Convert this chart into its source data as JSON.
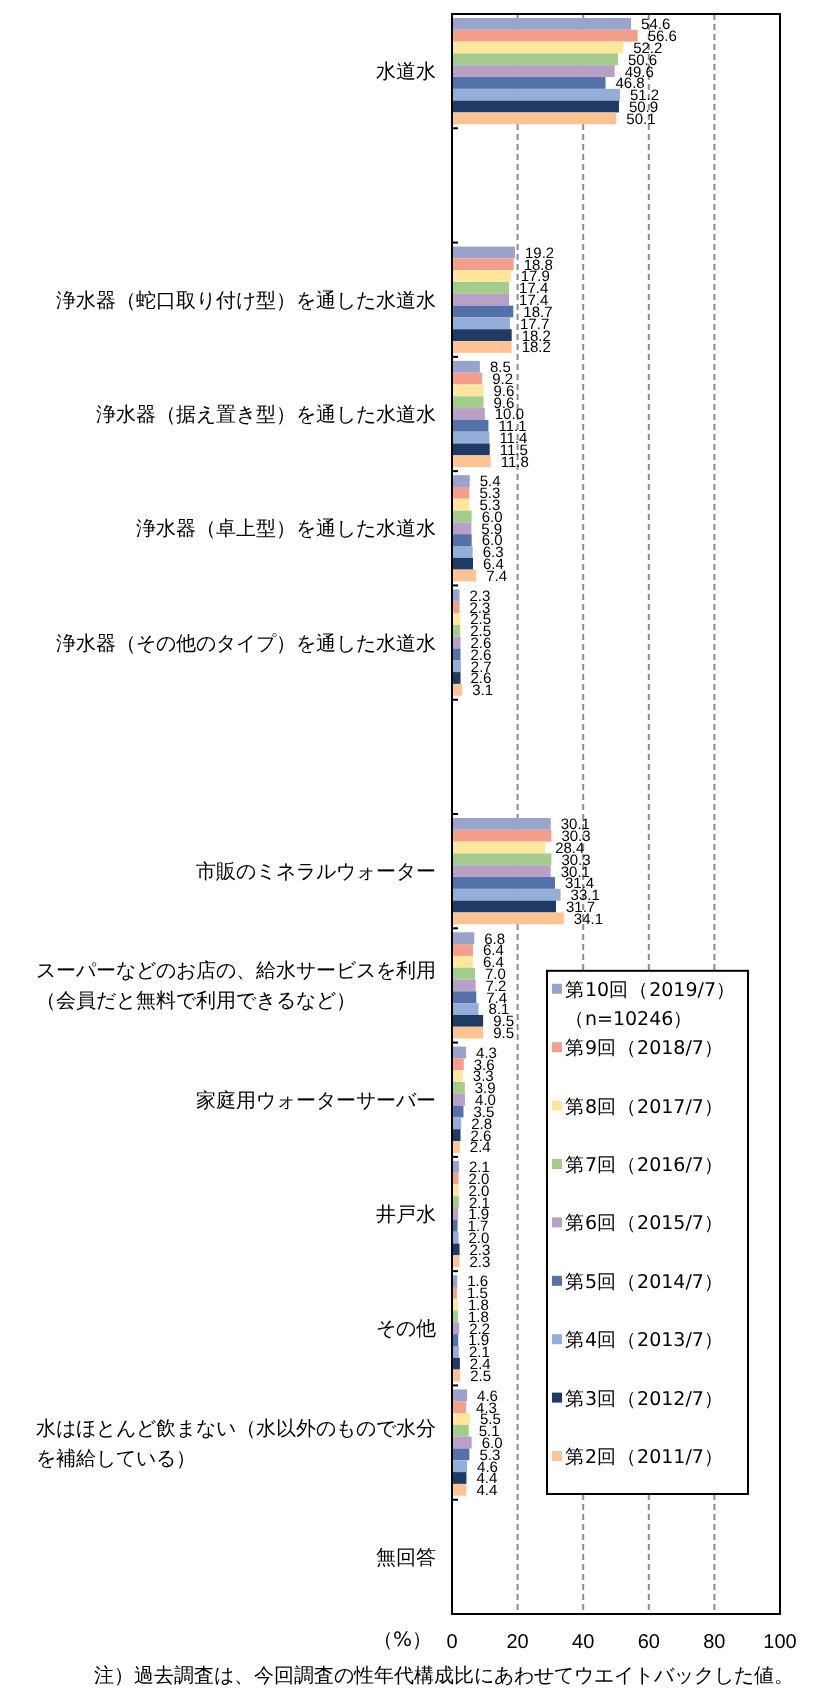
{
  "chart_data": {
    "type": "bar",
    "orientation": "horizontal",
    "categories": [
      "水道水",
      null,
      "浄水器（蛇口取り付け型）を通した水道水",
      "浄水器（据え置き型）を通した水道水",
      "浄水器（卓上型）を通した水道水",
      "浄水器（その他のタイプ）を通した水道水",
      null,
      "市販のミネラルウォーター",
      "スーパーなどのお店の、給水サービスを利用（会員だと無料で利用できるなど）",
      "家庭用ウォーターサーバー",
      "井戸水",
      "その他",
      "水はほとんど飲まない（水以外のもので水分を補給している）",
      "無回答"
    ],
    "series": [
      {
        "name": "第10回（2019/7）（n=10246）",
        "color": "#99a3cc",
        "values": [
          54.6,
          null,
          19.2,
          8.5,
          5.4,
          2.3,
          null,
          30.1,
          6.8,
          4.3,
          2.1,
          1.6,
          4.6,
          null
        ],
        "value_labels": [
          "54.6",
          null,
          "19.2",
          "8.5",
          "5.4",
          "2.3",
          null,
          "30.1",
          "6.8",
          "4.3",
          "2.1",
          "1.6",
          "4.6",
          null
        ]
      },
      {
        "name": "第9回（2018/7）",
        "color": "#f2a08c",
        "values": [
          56.6,
          null,
          18.8,
          9.2,
          5.3,
          2.3,
          null,
          30.3,
          6.4,
          3.6,
          2.0,
          1.5,
          4.3,
          null
        ],
        "value_labels": [
          "56.6",
          null,
          "18.8",
          "9.2",
          "5.3",
          "2.3",
          null,
          "30.3",
          "6.4",
          "3.6",
          "2.0",
          "1.5",
          "4.3",
          null
        ]
      },
      {
        "name": "第8回（2017/7）",
        "color": "#ffe69a",
        "values": [
          52.2,
          null,
          17.9,
          9.6,
          5.3,
          2.5,
          null,
          28.4,
          6.4,
          3.3,
          2.0,
          1.8,
          5.5,
          null
        ],
        "value_labels": [
          "52.2",
          null,
          "17.9",
          "9.6",
          "5.3",
          "2.5",
          null,
          "28.4",
          "6.4",
          "3.3",
          "2.0",
          "1.8",
          "5.5",
          null
        ]
      },
      {
        "name": "第7回（2016/7）",
        "color": "#a2cd8a",
        "values": [
          50.6,
          null,
          17.4,
          9.6,
          6.0,
          2.5,
          null,
          30.3,
          7.0,
          3.9,
          2.1,
          1.8,
          5.1,
          null
        ],
        "value_labels": [
          "50.6",
          null,
          "17.4",
          "9.6",
          "6.0",
          "2.5",
          null,
          "30.3",
          "7.0",
          "3.9",
          "2.1",
          "1.8",
          "5.1",
          null
        ]
      },
      {
        "name": "第6回（2015/7）",
        "color": "#b9a0c6",
        "values": [
          49.6,
          null,
          17.4,
          10.0,
          5.9,
          2.6,
          null,
          30.1,
          7.2,
          4.0,
          1.9,
          2.2,
          6.0,
          null
        ],
        "value_labels": [
          "49.6",
          null,
          "17.4",
          "10.0",
          "5.9",
          "2.6",
          null,
          "30.1",
          "7.2",
          "4.0",
          "1.9",
          "2.2",
          "6.0",
          null
        ]
      },
      {
        "name": "第5回（2014/7）",
        "color": "#5571a9",
        "values": [
          46.8,
          null,
          18.7,
          11.1,
          6.0,
          2.6,
          null,
          31.4,
          7.4,
          3.5,
          1.7,
          1.9,
          5.3,
          null
        ],
        "value_labels": [
          "46.8",
          null,
          "18.7",
          "11.1",
          "6.0",
          "2.6",
          null,
          "31.4",
          "7.4",
          "3.5",
          "1.7",
          "1.9",
          "5.3",
          null
        ]
      },
      {
        "name": "第4回（2013/7）",
        "color": "#94add9",
        "values": [
          51.2,
          null,
          17.7,
          11.4,
          6.3,
          2.7,
          null,
          33.1,
          8.1,
          2.8,
          2.0,
          2.1,
          4.6,
          null
        ],
        "value_labels": [
          "51.2",
          null,
          "17.7",
          "11.4",
          "6.3",
          "2.7",
          null,
          "33.1",
          "8.1",
          "2.8",
          "2.0",
          "2.1",
          "4.6",
          null
        ]
      },
      {
        "name": "第3回（2012/7）",
        "color": "#1e3a66",
        "values": [
          50.9,
          null,
          18.2,
          11.5,
          6.4,
          2.6,
          null,
          31.7,
          9.5,
          2.6,
          2.3,
          2.4,
          4.4,
          null
        ],
        "value_labels": [
          "50.9",
          null,
          "18.2",
          "11.5",
          "6.4",
          "2.6",
          null,
          "31.7",
          "9.5",
          "2.6",
          "2.3",
          "2.4",
          "4.4",
          null
        ]
      },
      {
        "name": "第2回（2011/7）",
        "color": "#fdc491",
        "values": [
          50.1,
          null,
          18.2,
          11.8,
          7.4,
          3.1,
          null,
          34.1,
          9.5,
          2.4,
          2.3,
          2.5,
          4.4,
          null
        ],
        "value_labels": [
          "50.1",
          null,
          "18.2",
          "11.8",
          "7.4",
          "3.1",
          null,
          "34.1",
          "9.5",
          "2.4",
          "2.3",
          "2.5",
          "4.4",
          null
        ]
      }
    ],
    "xlabel": "（%）",
    "xlim": [
      0,
      100
    ],
    "xticks": [
      0,
      20,
      40,
      60,
      80,
      100
    ],
    "grid": "x",
    "legend": "bottom right",
    "annotations": [
      "注）過去調査は、今回調査の性年代構成比にあわせてウエイトバックした値。"
    ]
  }
}
